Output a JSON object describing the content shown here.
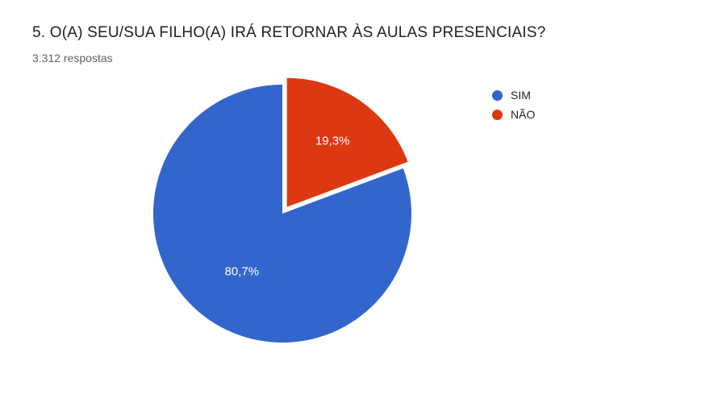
{
  "title": "5. O(A) SEU/SUA FILHO(A) IRÁ RETORNAR ÀS AULAS PRESENCIAIS?",
  "subtitle": "3.312 respostas",
  "chart": {
    "type": "pie",
    "background_color": "#ffffff",
    "radius": 160,
    "pull_out_slice_index": 1,
    "pull_out_distance": 10,
    "title_color": "#202124",
    "title_fontsize": 19,
    "subtitle_color": "#5f6368",
    "subtitle_fontsize": 14,
    "label_color": "#ffffff",
    "label_fontsize": 15,
    "legend_fontsize": 14,
    "legend_text_color": "#202124",
    "slices": [
      {
        "label": "SIM",
        "value": 80.7,
        "display": "80,7%",
        "color": "#3366cc"
      },
      {
        "label": "NÃO",
        "value": 19.3,
        "display": "19,3%",
        "color": "#dc3912"
      }
    ]
  }
}
